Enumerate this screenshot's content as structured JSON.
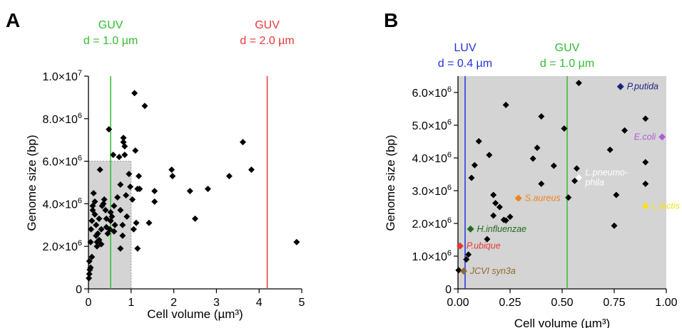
{
  "chart_data": [
    {
      "panel_label": "A",
      "type": "scatter",
      "xlabel": "Cell volume (µm³)",
      "ylabel": "Genome size (bp)",
      "xlim": [
        0,
        5
      ],
      "ylim": [
        0,
        10000000
      ],
      "x_ticks": [
        0,
        1,
        2,
        3,
        4,
        5
      ],
      "x_tick_labels": [
        "0",
        "1",
        "2",
        "3",
        "4",
        "5"
      ],
      "y_ticks": [
        0,
        2000000,
        4000000,
        6000000,
        8000000,
        10000000
      ],
      "y_tick_labels": [
        [
          "0",
          ""
        ],
        [
          "2.0×10",
          "6"
        ],
        [
          "4.0×10",
          "6"
        ],
        [
          "6.0×10",
          "6"
        ],
        [
          "8.0×10",
          "6"
        ],
        [
          "1.0×10",
          "7"
        ]
      ],
      "shaded_region": {
        "x": [
          0,
          1
        ],
        "y": [
          0,
          6000000
        ],
        "color": "#d4d4d4"
      },
      "vlines": [
        {
          "x": 0.52,
          "color": "#33bb33",
          "label": [
            "GUV",
            "d = 1.0 µm"
          ]
        },
        {
          "x": 4.19,
          "color": "#e53935",
          "label": [
            "GUV",
            "d = 2.0 µm"
          ]
        }
      ],
      "marker_color": "#000000",
      "points": [
        [
          0.01,
          500000
        ],
        [
          0.02,
          700000
        ],
        [
          0.03,
          900000
        ],
        [
          0.02,
          1300000
        ],
        [
          0.05,
          1000000
        ],
        [
          0.08,
          1500000
        ],
        [
          0.05,
          2200000
        ],
        [
          0.06,
          2800000
        ],
        [
          0.08,
          3200000
        ],
        [
          0.1,
          3700000
        ],
        [
          0.12,
          4500000
        ],
        [
          0.1,
          3900000
        ],
        [
          0.15,
          4100000
        ],
        [
          0.15,
          3500000
        ],
        [
          0.18,
          3000000
        ],
        [
          0.18,
          2500000
        ],
        [
          0.2,
          2200000
        ],
        [
          0.2,
          2000000
        ],
        [
          0.22,
          2600000
        ],
        [
          0.25,
          2300000
        ],
        [
          0.25,
          3300000
        ],
        [
          0.27,
          5600000
        ],
        [
          0.3,
          2100000
        ],
        [
          0.3,
          2800000
        ],
        [
          0.32,
          3900000
        ],
        [
          0.35,
          4000000
        ],
        [
          0.37,
          4200000
        ],
        [
          0.4,
          3700000
        ],
        [
          0.42,
          3300000
        ],
        [
          0.42,
          2900000
        ],
        [
          0.45,
          2600000
        ],
        [
          0.48,
          7500000
        ],
        [
          0.5,
          2800000
        ],
        [
          0.52,
          3600000
        ],
        [
          0.52,
          3200000
        ],
        [
          0.55,
          3400000
        ],
        [
          0.58,
          6300000
        ],
        [
          0.6,
          2700000
        ],
        [
          0.6,
          3900000
        ],
        [
          0.62,
          3000000
        ],
        [
          0.68,
          4300000
        ],
        [
          0.72,
          6200000
        ],
        [
          0.75,
          1900000
        ],
        [
          0.75,
          3700000
        ],
        [
          0.75,
          4900000
        ],
        [
          0.8,
          2500000
        ],
        [
          0.8,
          3000000
        ],
        [
          0.82,
          7100000
        ],
        [
          0.82,
          6900000
        ],
        [
          0.85,
          6700000
        ],
        [
          0.85,
          6300000
        ],
        [
          0.88,
          4400000
        ],
        [
          0.9,
          3400000
        ],
        [
          0.95,
          5400000
        ],
        [
          0.98,
          4800000
        ],
        [
          1.03,
          4200000
        ],
        [
          1.06,
          2800000
        ],
        [
          1.08,
          9200000
        ],
        [
          1.1,
          6500000
        ],
        [
          1.12,
          3100000
        ],
        [
          1.15,
          1900000
        ],
        [
          1.15,
          4700000
        ],
        [
          1.18,
          5300000
        ],
        [
          1.2,
          4700000
        ],
        [
          1.32,
          8600000
        ],
        [
          1.42,
          3100000
        ],
        [
          1.55,
          4600000
        ],
        [
          1.55,
          4100000
        ],
        [
          1.95,
          5600000
        ],
        [
          1.97,
          5300000
        ],
        [
          2.38,
          4600000
        ],
        [
          2.5,
          3300000
        ],
        [
          2.8,
          4700000
        ],
        [
          3.3,
          5300000
        ],
        [
          3.62,
          6900000
        ],
        [
          3.82,
          5600000
        ],
        [
          4.88,
          2200000
        ]
      ]
    },
    {
      "panel_label": "B",
      "type": "scatter",
      "xlabel": "Cell volume (µm³)",
      "ylabel": "Genome size (bp)",
      "xlim": [
        0,
        1
      ],
      "ylim": [
        0,
        6500000
      ],
      "x_ticks": [
        0,
        0.25,
        0.5,
        0.75,
        1.0
      ],
      "x_tick_labels": [
        "0.00",
        "0.25",
        "0.50",
        "0.75",
        "1.00"
      ],
      "y_ticks": [
        0,
        1000000,
        2000000,
        3000000,
        4000000,
        5000000,
        6000000
      ],
      "y_tick_labels": [
        [
          "0",
          ""
        ],
        [
          "1.0×10",
          "6"
        ],
        [
          "2.0×10",
          "6"
        ],
        [
          "3.0×10",
          "6"
        ],
        [
          "4.0×10",
          "6"
        ],
        [
          "5.0×10",
          "6"
        ],
        [
          "6.0×10",
          "6"
        ]
      ],
      "shaded_region": {
        "x": [
          0,
          1
        ],
        "y": [
          0,
          6500000
        ],
        "color": "#d4d4d4"
      },
      "vlines": [
        {
          "x": 0.034,
          "color": "#2233dd",
          "label": [
            "LUV",
            "d = 0.4 µm"
          ]
        },
        {
          "x": 0.524,
          "color": "#33bb33",
          "label": [
            "GUV",
            "d = 1.0 µm"
          ]
        }
      ],
      "marker_color": "#000000",
      "points": [
        [
          0.003,
          570000
        ],
        [
          0.04,
          900000
        ],
        [
          0.05,
          1050000
        ],
        [
          0.065,
          3390000
        ],
        [
          0.08,
          3780000
        ],
        [
          0.1,
          4510000
        ],
        [
          0.14,
          1520000
        ],
        [
          0.15,
          4090000
        ],
        [
          0.17,
          2870000
        ],
        [
          0.17,
          2240000
        ],
        [
          0.18,
          2620000
        ],
        [
          0.2,
          2500000
        ],
        [
          0.22,
          2110000
        ],
        [
          0.23,
          5620000
        ],
        [
          0.23,
          2090000
        ],
        [
          0.25,
          2200000
        ],
        [
          0.36,
          3980000
        ],
        [
          0.38,
          4310000
        ],
        [
          0.4,
          3210000
        ],
        [
          0.4,
          5270000
        ],
        [
          0.46,
          3760000
        ],
        [
          0.51,
          4900000
        ],
        [
          0.53,
          2790000
        ],
        [
          0.56,
          3300000
        ],
        [
          0.57,
          3680000
        ],
        [
          0.58,
          6290000
        ],
        [
          0.73,
          4250000
        ],
        [
          0.75,
          1930000
        ],
        [
          0.76,
          2870000
        ],
        [
          0.8,
          4840000
        ],
        [
          0.9,
          5200000
        ],
        [
          0.9,
          3870000
        ],
        [
          0.9,
          3210000
        ]
      ],
      "highlighted": [
        {
          "name": "P.putida",
          "x": 0.78,
          "y": 6180000,
          "color": "#1a237e"
        },
        {
          "name": "E.coli",
          "x": 0.98,
          "y": 4640000,
          "color": "#b05cd6"
        },
        {
          "name": "L.pneumo-phila",
          "label_lines": [
            "L.pneumo-",
            "phila"
          ],
          "x": 0.58,
          "y": 3400000,
          "color": "#ffffff"
        },
        {
          "name": "S.aureus",
          "x": 0.29,
          "y": 2770000,
          "color": "#f0821e"
        },
        {
          "name": "L.lactis",
          "x": 0.9,
          "y": 2530000,
          "color": "#f5e21a"
        },
        {
          "name": "H.influenzae",
          "x": 0.06,
          "y": 1830000,
          "color": "#1e6b1e"
        },
        {
          "name": "P.ubique",
          "x": 0.01,
          "y": 1310000,
          "color": "#e53935"
        },
        {
          "name": "JCVI syn3a",
          "x": 0.027,
          "y": 543000,
          "color": "#8b6b2e"
        }
      ]
    }
  ]
}
